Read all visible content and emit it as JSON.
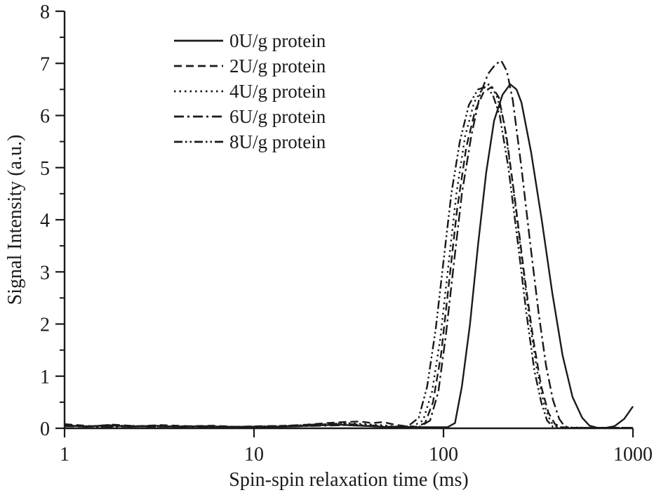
{
  "figure": {
    "background": "#ffffff",
    "ink_color": "#1a1a1a"
  },
  "chart_data": {
    "type": "line",
    "title": "",
    "xlabel": "Spin-spin relaxation time (ms)",
    "ylabel": "Signal Intensity (a.u.)",
    "x_scale": "log",
    "xlim": [
      1,
      1000
    ],
    "ylim": [
      0,
      8
    ],
    "x_ticks": [
      1,
      10,
      100,
      1000
    ],
    "x_tick_labels": [
      "1",
      "10",
      "100",
      "1000"
    ],
    "y_ticks": [
      0,
      1,
      2,
      3,
      4,
      5,
      6,
      7,
      8
    ],
    "y_tick_labels": [
      "0",
      "1",
      "2",
      "3",
      "4",
      "5",
      "6",
      "7",
      "8"
    ],
    "y_minor_tick_step": 0.5,
    "grid": false,
    "legend_position": "upper-left-inside",
    "series": [
      {
        "name": "0U/g protein",
        "style": "solid",
        "peak": {
          "x_ms": 225,
          "y": 6.6
        },
        "points": [
          [
            1,
            0.06
          ],
          [
            1.3,
            0.03
          ],
          [
            1.7,
            0.06
          ],
          [
            2.2,
            0.03
          ],
          [
            3,
            0.05
          ],
          [
            4,
            0.03
          ],
          [
            5.5,
            0.04
          ],
          [
            7,
            0.03
          ],
          [
            10,
            0.03
          ],
          [
            14,
            0.03
          ],
          [
            20,
            0.05
          ],
          [
            28,
            0.07
          ],
          [
            36,
            0.05
          ],
          [
            48,
            0.03
          ],
          [
            65,
            0.02
          ],
          [
            85,
            0.02
          ],
          [
            105,
            0.02
          ],
          [
            115,
            0.1
          ],
          [
            125,
            0.8
          ],
          [
            138,
            2.0
          ],
          [
            152,
            3.5
          ],
          [
            168,
            4.9
          ],
          [
            185,
            5.9
          ],
          [
            205,
            6.4
          ],
          [
            225,
            6.6
          ],
          [
            243,
            6.5
          ],
          [
            258,
            6.25
          ],
          [
            290,
            5.3
          ],
          [
            330,
            4.0
          ],
          [
            375,
            2.6
          ],
          [
            425,
            1.4
          ],
          [
            480,
            0.6
          ],
          [
            540,
            0.2
          ],
          [
            590,
            0.05
          ],
          [
            650,
            0.01
          ],
          [
            720,
            0.01
          ],
          [
            800,
            0.04
          ],
          [
            900,
            0.18
          ],
          [
            1000,
            0.42
          ]
        ]
      },
      {
        "name": "2U/g protein",
        "style": "dashed",
        "peak": {
          "x_ms": 180,
          "y": 6.55
        },
        "points": [
          [
            1,
            0.08
          ],
          [
            1.4,
            0.04
          ],
          [
            1.8,
            0.07
          ],
          [
            2.4,
            0.04
          ],
          [
            3.2,
            0.06
          ],
          [
            4.5,
            0.04
          ],
          [
            6,
            0.05
          ],
          [
            8,
            0.03
          ],
          [
            11,
            0.04
          ],
          [
            15,
            0.05
          ],
          [
            19,
            0.07
          ],
          [
            24,
            0.1
          ],
          [
            30,
            0.12
          ],
          [
            36,
            0.13
          ],
          [
            42,
            0.1
          ],
          [
            48,
            0.12
          ],
          [
            55,
            0.07
          ],
          [
            63,
            0.04
          ],
          [
            72,
            0.03
          ],
          [
            80,
            0.1
          ],
          [
            88,
            0.5
          ],
          [
            97,
            1.4
          ],
          [
            107,
            2.8
          ],
          [
            118,
            4.2
          ],
          [
            132,
            5.4
          ],
          [
            147,
            6.1
          ],
          [
            163,
            6.45
          ],
          [
            180,
            6.55
          ],
          [
            196,
            6.35
          ],
          [
            215,
            5.6
          ],
          [
            240,
            4.3
          ],
          [
            268,
            2.9
          ],
          [
            298,
            1.7
          ],
          [
            328,
            0.8
          ],
          [
            358,
            0.3
          ],
          [
            388,
            0.08
          ],
          [
            420,
            0.02
          ],
          [
            500,
            0.01
          ],
          [
            700,
            0.01
          ],
          [
            1000,
            0.01
          ]
        ]
      },
      {
        "name": "4U/g protein",
        "style": "dotted",
        "peak": {
          "x_ms": 174,
          "y": 6.6
        },
        "points": [
          [
            1,
            0.05
          ],
          [
            1.6,
            0.03
          ],
          [
            2.2,
            0.05
          ],
          [
            3,
            0.03
          ],
          [
            4.5,
            0.04
          ],
          [
            6.5,
            0.03
          ],
          [
            9,
            0.03
          ],
          [
            13,
            0.04
          ],
          [
            18,
            0.05
          ],
          [
            24,
            0.08
          ],
          [
            31,
            0.1
          ],
          [
            39,
            0.08
          ],
          [
            47,
            0.06
          ],
          [
            57,
            0.03
          ],
          [
            68,
            0.03
          ],
          [
            78,
            0.15
          ],
          [
            87,
            0.7
          ],
          [
            96,
            1.7
          ],
          [
            106,
            3.1
          ],
          [
            117,
            4.5
          ],
          [
            130,
            5.6
          ],
          [
            145,
            6.25
          ],
          [
            160,
            6.5
          ],
          [
            174,
            6.6
          ],
          [
            190,
            6.4
          ],
          [
            208,
            5.9
          ],
          [
            230,
            4.8
          ],
          [
            256,
            3.4
          ],
          [
            284,
            2.1
          ],
          [
            312,
            1.1
          ],
          [
            340,
            0.45
          ],
          [
            368,
            0.12
          ],
          [
            400,
            0.02
          ],
          [
            600,
            0.01
          ],
          [
            1000,
            0.01
          ]
        ]
      },
      {
        "name": "6U/g protein",
        "style": "dashdot",
        "peak": {
          "x_ms": 202,
          "y": 7.05
        },
        "points": [
          [
            1,
            0.04
          ],
          [
            1.8,
            0.03
          ],
          [
            2.6,
            0.04
          ],
          [
            3.8,
            0.03
          ],
          [
            5.5,
            0.03
          ],
          [
            8,
            0.02
          ],
          [
            12,
            0.03
          ],
          [
            17,
            0.04
          ],
          [
            23,
            0.05
          ],
          [
            30,
            0.06
          ],
          [
            38,
            0.05
          ],
          [
            50,
            0.03
          ],
          [
            62,
            0.02
          ],
          [
            75,
            0.03
          ],
          [
            85,
            0.15
          ],
          [
            94,
            0.7
          ],
          [
            103,
            1.8
          ],
          [
            113,
            3.1
          ],
          [
            125,
            4.5
          ],
          [
            140,
            5.6
          ],
          [
            156,
            6.4
          ],
          [
            172,
            6.8
          ],
          [
            188,
            6.98
          ],
          [
            202,
            7.05
          ],
          [
            216,
            6.85
          ],
          [
            232,
            6.3
          ],
          [
            258,
            5.0
          ],
          [
            288,
            3.5
          ],
          [
            318,
            2.2
          ],
          [
            348,
            1.2
          ],
          [
            378,
            0.55
          ],
          [
            408,
            0.18
          ],
          [
            435,
            0.04
          ],
          [
            470,
            0.01
          ],
          [
            700,
            0.01
          ],
          [
            1000,
            0.01
          ]
        ]
      },
      {
        "name": "8U/g protein",
        "style": "dashdotdot",
        "peak": {
          "x_ms": 167,
          "y": 6.55
        },
        "points": [
          [
            1,
            0.06
          ],
          [
            1.5,
            0.03
          ],
          [
            2,
            0.05
          ],
          [
            2.8,
            0.03
          ],
          [
            4,
            0.04
          ],
          [
            6,
            0.03
          ],
          [
            9,
            0.03
          ],
          [
            13,
            0.04
          ],
          [
            18,
            0.06
          ],
          [
            23,
            0.08
          ],
          [
            29,
            0.09
          ],
          [
            36,
            0.07
          ],
          [
            44,
            0.05
          ],
          [
            54,
            0.03
          ],
          [
            65,
            0.04
          ],
          [
            74,
            0.2
          ],
          [
            82,
            0.8
          ],
          [
            91,
            1.9
          ],
          [
            100,
            3.2
          ],
          [
            110,
            4.5
          ],
          [
            122,
            5.5
          ],
          [
            136,
            6.2
          ],
          [
            152,
            6.5
          ],
          [
            167,
            6.55
          ],
          [
            182,
            6.4
          ],
          [
            198,
            6.0
          ],
          [
            220,
            5.0
          ],
          [
            246,
            3.6
          ],
          [
            274,
            2.2
          ],
          [
            302,
            1.1
          ],
          [
            328,
            0.5
          ],
          [
            352,
            0.15
          ],
          [
            378,
            0.03
          ],
          [
            420,
            0.01
          ],
          [
            700,
            0.01
          ],
          [
            1000,
            0.01
          ]
        ]
      }
    ]
  }
}
